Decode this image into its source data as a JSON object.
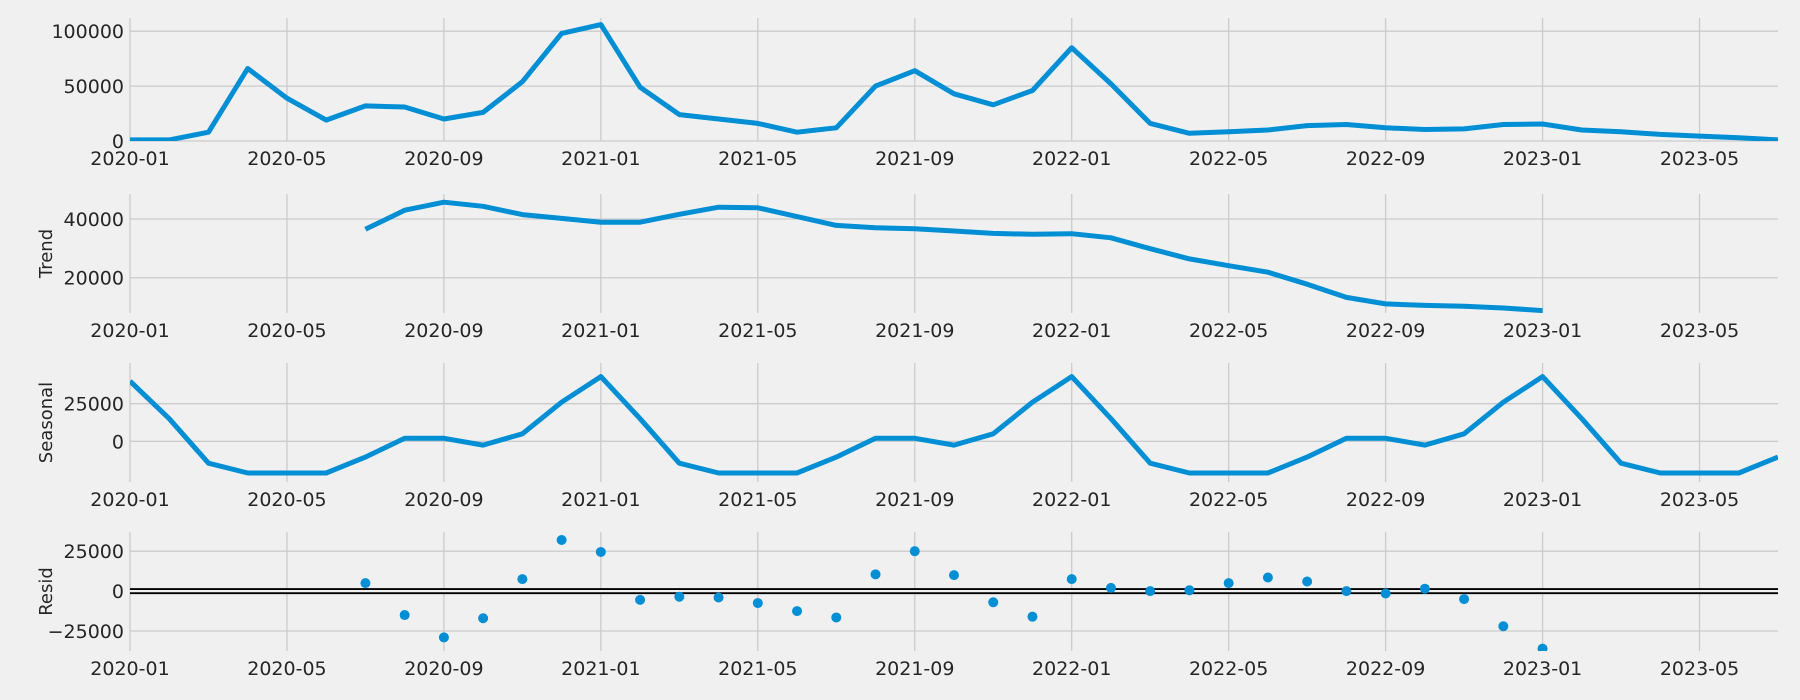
{
  "chart_data": [
    {
      "type": "line",
      "ylabel": "",
      "ylim": [
        0,
        112000
      ],
      "yticks": [
        0,
        50000,
        100000
      ],
      "ytick_labels": [
        "0",
        "50000",
        "100000"
      ],
      "x": [
        "2020-01",
        "2020-02",
        "2020-03",
        "2020-04",
        "2020-05",
        "2020-06",
        "2020-07",
        "2020-08",
        "2020-09",
        "2020-10",
        "2020-11",
        "2020-12",
        "2021-01",
        "2021-02",
        "2021-03",
        "2021-04",
        "2021-05",
        "2021-06",
        "2021-07",
        "2021-08",
        "2021-09",
        "2021-10",
        "2021-11",
        "2021-12",
        "2022-01",
        "2022-02",
        "2022-03",
        "2022-04",
        "2022-05",
        "2022-06",
        "2022-07",
        "2022-08",
        "2022-09",
        "2022-10",
        "2022-11",
        "2022-12",
        "2023-01",
        "2023-02",
        "2023-03",
        "2023-04",
        "2023-05",
        "2023-06",
        "2023-07"
      ],
      "values": [
        1000,
        1000,
        8000,
        66000,
        39000,
        19000,
        32000,
        31000,
        20000,
        26000,
        54000,
        98000,
        106000,
        49000,
        24000,
        20000,
        16000,
        8000,
        12000,
        50000,
        64000,
        43000,
        33000,
        46000,
        85000,
        52000,
        16000,
        7000,
        8500,
        10000,
        14000,
        15000,
        12000,
        10500,
        11000,
        15000,
        15500,
        10000,
        8500,
        6000,
        4500,
        3000,
        1000
      ]
    },
    {
      "type": "line",
      "ylabel": "Trend",
      "ylim": [
        8000,
        48500
      ],
      "yticks": [
        20000,
        40000
      ],
      "ytick_labels": [
        "20000",
        "40000"
      ],
      "x": [
        "2020-07",
        "2020-08",
        "2020-09",
        "2020-10",
        "2020-11",
        "2020-12",
        "2021-01",
        "2021-02",
        "2021-03",
        "2021-04",
        "2021-05",
        "2021-06",
        "2021-07",
        "2021-08",
        "2021-09",
        "2021-10",
        "2021-11",
        "2021-12",
        "2022-01",
        "2022-02",
        "2022-03",
        "2022-04",
        "2022-05",
        "2022-06",
        "2022-07",
        "2022-08",
        "2022-09",
        "2022-10",
        "2022-11",
        "2022-12",
        "2023-01"
      ],
      "values": [
        36500,
        43000,
        45700,
        44300,
        41500,
        40200,
        38900,
        38900,
        41600,
        44000,
        43800,
        40800,
        37800,
        37000,
        36700,
        35900,
        35100,
        34800,
        35000,
        33600,
        29900,
        26400,
        24100,
        21900,
        17800,
        13300,
        11100,
        10600,
        10300,
        9700,
        8800
      ]
    },
    {
      "type": "line",
      "ylabel": "Seasonal",
      "ylim": [
        -27000,
        52000
      ],
      "yticks": [
        0,
        25000
      ],
      "ytick_labels": [
        "0",
        "25000"
      ],
      "x": [
        "2020-01",
        "2020-02",
        "2020-03",
        "2020-04",
        "2020-05",
        "2020-06",
        "2020-07",
        "2020-08",
        "2020-09",
        "2020-10",
        "2020-11",
        "2020-12",
        "2021-01",
        "2021-02",
        "2021-03",
        "2021-04",
        "2021-05",
        "2021-06",
        "2021-07",
        "2021-08",
        "2021-09",
        "2021-10",
        "2021-11",
        "2021-12",
        "2022-01",
        "2022-02",
        "2022-03",
        "2022-04",
        "2022-05",
        "2022-06",
        "2022-07",
        "2022-08",
        "2022-09",
        "2022-10",
        "2022-11",
        "2022-12",
        "2023-01",
        "2023-02",
        "2023-03",
        "2023-04",
        "2023-05",
        "2023-06",
        "2023-07"
      ],
      "values": [
        40000,
        15000,
        -14500,
        -21000,
        -21000,
        -21000,
        -10500,
        2000,
        2000,
        -2500,
        5000,
        26000,
        43000,
        15000,
        -14500,
        -21000,
        -21000,
        -21000,
        -10500,
        2000,
        2000,
        -2500,
        5000,
        26000,
        43000,
        15000,
        -14500,
        -21000,
        -21000,
        -21000,
        -10500,
        2000,
        2000,
        -2500,
        5000,
        26000,
        43000,
        15000,
        -14500,
        -21000,
        -21000,
        -21000,
        -10500
      ]
    },
    {
      "type": "scatter",
      "ylabel": "Resid",
      "ylim": [
        -37500,
        37000
      ],
      "yticks": [
        -25000,
        0,
        25000
      ],
      "ytick_labels": [
        "−25000",
        "0",
        "25000"
      ],
      "baseline": 0,
      "x": [
        "2020-07",
        "2020-08",
        "2020-09",
        "2020-10",
        "2020-11",
        "2020-12",
        "2021-01",
        "2021-02",
        "2021-03",
        "2021-04",
        "2021-05",
        "2021-06",
        "2021-07",
        "2021-08",
        "2021-09",
        "2021-10",
        "2021-11",
        "2021-12",
        "2022-01",
        "2022-02",
        "2022-03",
        "2022-04",
        "2022-05",
        "2022-06",
        "2022-07",
        "2022-08",
        "2022-09",
        "2022-10",
        "2022-11",
        "2022-12",
        "2023-01"
      ],
      "values": [
        5000,
        -15000,
        -29000,
        -17000,
        7500,
        32000,
        24500,
        -5500,
        -3500,
        -4000,
        -7500,
        -12500,
        -16500,
        10500,
        25000,
        10000,
        -7000,
        -16000,
        7500,
        2000,
        0,
        500,
        5000,
        8500,
        6000,
        0,
        -1500,
        1500,
        -5000,
        -22000,
        -36000
      ]
    }
  ],
  "x_axis": {
    "min": "2020-01",
    "max": "2023-07",
    "ticks": [
      "2020-01",
      "2020-05",
      "2020-09",
      "2021-01",
      "2021-05",
      "2021-09",
      "2022-01",
      "2022-05",
      "2022-09",
      "2023-01",
      "2023-05"
    ],
    "tick_labels": [
      "2020-01",
      "2020-05",
      "2020-09",
      "2021-01",
      "2021-05",
      "2021-09",
      "2022-01",
      "2022-05",
      "2022-09",
      "2023-01",
      "2023-05"
    ]
  },
  "grid": true,
  "colors": {
    "series": "#008fd5",
    "background": "#f0f0f0",
    "grid": "#cbcbcb",
    "baseline": "#000000",
    "text": "#262626"
  }
}
